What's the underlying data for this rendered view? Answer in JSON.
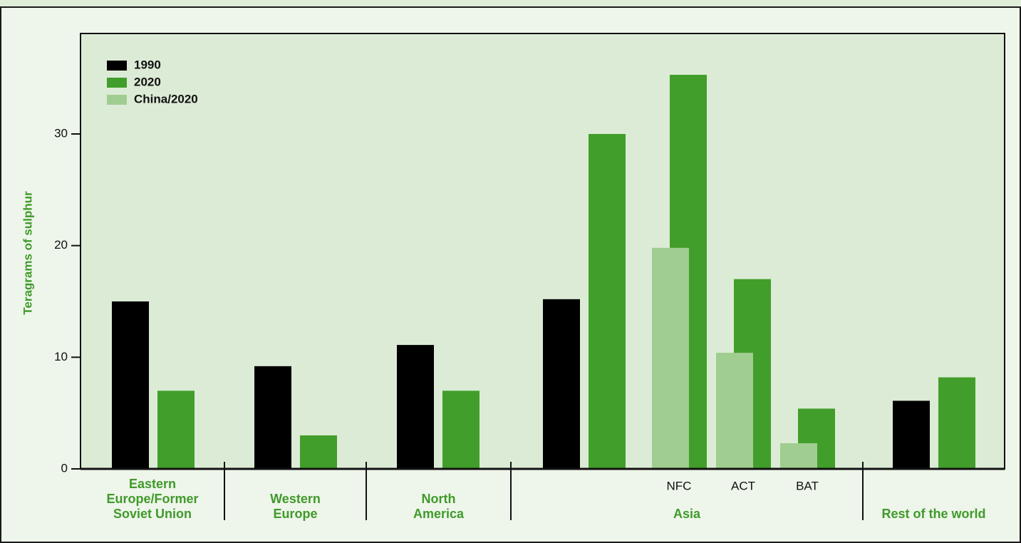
{
  "chart_data": {
    "type": "bar",
    "ylabel": "Teragrams of sulphur",
    "groups": [
      {
        "label": "Eastern Europe/Former Soviet Union",
        "categories": [
          null
        ]
      },
      {
        "label": "Western Europe",
        "categories": [
          null
        ]
      },
      {
        "label": "North America",
        "categories": [
          null
        ]
      },
      {
        "label": "Asia",
        "categories": [
          null,
          "NFC",
          "ACT",
          "BAT"
        ]
      },
      {
        "label": "Rest of the world",
        "categories": [
          null
        ]
      }
    ],
    "series": [
      {
        "name": "1990",
        "color": "#000000",
        "values": [
          15,
          9.2,
          11.1,
          15.2,
          null,
          null,
          null,
          6.1
        ]
      },
      {
        "name": "2020",
        "color": "#429e2a",
        "values": [
          7,
          3,
          7,
          30,
          35.3,
          17,
          5.4,
          8.2
        ]
      },
      {
        "name": "China/2020",
        "color": "#a0cd90",
        "values": [
          null,
          null,
          null,
          null,
          19.8,
          10.4,
          2.3,
          null
        ]
      }
    ],
    "ylim": [
      0,
      39
    ],
    "yticks": [
      0,
      10,
      20,
      30
    ]
  }
}
